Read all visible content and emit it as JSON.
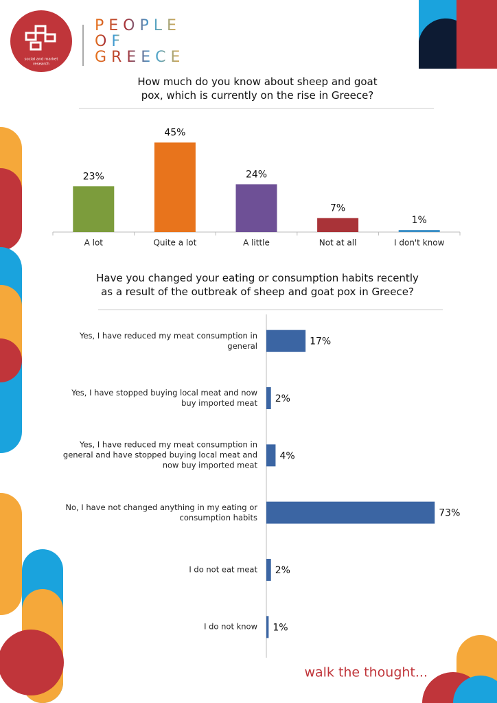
{
  "header": {
    "brand": [
      "PEOPLE",
      "OF",
      "GREECE"
    ],
    "logo_text": [
      "social and market",
      "research"
    ]
  },
  "chart_data": [
    {
      "type": "bar",
      "title": "How much do you know about sheep and goat pox, which is currently on the rise in Greece?",
      "categories": [
        "A lot",
        "Quite a lot",
        "A little",
        "Not at all",
        "I don't know"
      ],
      "values": [
        23,
        45,
        24,
        7,
        1
      ],
      "value_labels": [
        "23%",
        "45%",
        "24%",
        "7%",
        "1%"
      ],
      "colors": [
        "#7c9c3c",
        "#e8741c",
        "#6e5096",
        "#a93338",
        "#3b8fc6"
      ]
    },
    {
      "type": "barh",
      "title": "Have you changed your eating or consumption habits recently as a result of the outbreak of sheep and goat pox in Greece?",
      "categories": [
        "Yes, I have reduced my meat consumption in general",
        "Yes, I have stopped buying local meat and now buy imported meat",
        "Yes, I have reduced my meat consumption in general and have stopped buying local meat and now buy imported meat",
        "No, I have not changed anything in my eating or consumption habits",
        "I do not eat meat",
        "I do not know"
      ],
      "values": [
        17,
        2,
        4,
        73,
        2,
        1
      ],
      "value_labels": [
        "17%",
        "2%",
        "4%",
        "73%",
        "2%",
        "1%"
      ],
      "color": "#3b65a3"
    }
  ],
  "footer": {
    "tagline": "walk the thought..."
  }
}
